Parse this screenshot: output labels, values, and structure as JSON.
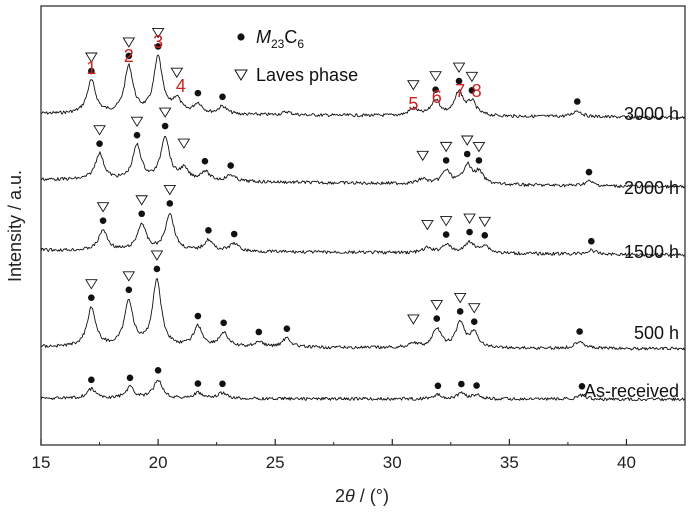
{
  "chart_data": {
    "type": "line",
    "title": "",
    "xlabel": "2θ / (°)",
    "ylabel": "Intensity / a.u.",
    "xlim": [
      15,
      42.5
    ],
    "xticks": [
      15,
      20,
      25,
      30,
      35,
      40
    ],
    "tick_labels": [
      "15",
      "20",
      "25",
      "30",
      "35",
      "40"
    ],
    "grid": false,
    "legend": {
      "placement": "top-center",
      "entries": [
        {
          "marker": "filled-circle",
          "label_main": "M",
          "label_sub1": "23",
          "label_mid": "C",
          "label_sub2": "6"
        },
        {
          "marker": "open-triangle-down",
          "label": "Laves phase"
        }
      ]
    },
    "peak_numbers": [
      {
        "text": "1",
        "x": 17.15
      },
      {
        "text": "2",
        "x": 18.75
      },
      {
        "text": "3",
        "x": 20.0
      },
      {
        "text": "4",
        "x": 20.8
      },
      {
        "text": "5",
        "x": 30.9
      },
      {
        "text": "6",
        "x": 31.9
      },
      {
        "text": "7",
        "x": 32.9
      },
      {
        "text": "8",
        "x": 33.6
      }
    ],
    "series": [
      {
        "name": "3000 h",
        "baseline": 0.08,
        "peaks": [
          {
            "x": 17.15,
            "h": 0.42
          },
          {
            "x": 18.75,
            "h": 0.6
          },
          {
            "x": 20.0,
            "h": 0.72
          },
          {
            "x": 20.8,
            "h": 0.18
          },
          {
            "x": 21.7,
            "h": 0.13
          },
          {
            "x": 22.75,
            "h": 0.1
          },
          {
            "x": 25.5,
            "h": 0.04
          },
          {
            "x": 30.9,
            "h": 0.09
          },
          {
            "x": 31.85,
            "h": 0.2
          },
          {
            "x": 32.85,
            "h": 0.3
          },
          {
            "x": 33.4,
            "h": 0.17
          },
          {
            "x": 37.9,
            "h": 0.08
          }
        ],
        "carbide_markers": [
          17.15,
          18.75,
          20.0,
          21.7,
          22.75,
          31.85,
          32.85,
          33.4,
          37.9
        ],
        "laves_markers": [
          17.15,
          18.75,
          20.0,
          20.8,
          30.9,
          31.85,
          32.85,
          33.4
        ]
      },
      {
        "name": "2000 h",
        "baseline": 0.16,
        "peaks": [
          {
            "x": 17.5,
            "h": 0.34
          },
          {
            "x": 19.1,
            "h": 0.44
          },
          {
            "x": 20.3,
            "h": 0.56
          },
          {
            "x": 21.1,
            "h": 0.14
          },
          {
            "x": 22.0,
            "h": 0.12
          },
          {
            "x": 23.1,
            "h": 0.08
          },
          {
            "x": 31.3,
            "h": 0.06
          },
          {
            "x": 32.3,
            "h": 0.17
          },
          {
            "x": 33.2,
            "h": 0.24
          },
          {
            "x": 33.7,
            "h": 0.15
          },
          {
            "x": 38.4,
            "h": 0.06
          }
        ],
        "carbide_markers": [
          17.5,
          19.1,
          20.3,
          22.0,
          23.1,
          32.3,
          33.2,
          33.7,
          38.4
        ],
        "laves_markers": [
          17.5,
          19.1,
          20.3,
          21.1,
          31.3,
          32.3,
          33.2,
          33.7
        ]
      },
      {
        "name": "1500 h",
        "baseline": 0.1,
        "peaks": [
          {
            "x": 17.65,
            "h": 0.26
          },
          {
            "x": 19.3,
            "h": 0.34
          },
          {
            "x": 20.5,
            "h": 0.48
          },
          {
            "x": 22.15,
            "h": 0.14
          },
          {
            "x": 23.25,
            "h": 0.1
          },
          {
            "x": 31.5,
            "h": 0.06
          },
          {
            "x": 32.3,
            "h": 0.11
          },
          {
            "x": 33.3,
            "h": 0.14
          },
          {
            "x": 33.95,
            "h": 0.1
          },
          {
            "x": 38.5,
            "h": 0.05
          }
        ],
        "carbide_markers": [
          17.65,
          19.3,
          20.5,
          22.15,
          23.25,
          32.3,
          33.3,
          33.95,
          38.5
        ],
        "laves_markers": [
          17.65,
          19.3,
          20.5,
          31.5,
          32.3,
          33.3,
          33.95
        ]
      },
      {
        "name": "500 h",
        "baseline": 0.04,
        "peaks": [
          {
            "x": 17.15,
            "h": 0.5
          },
          {
            "x": 18.75,
            "h": 0.58
          },
          {
            "x": 19.95,
            "h": 0.86
          },
          {
            "x": 21.7,
            "h": 0.26
          },
          {
            "x": 22.8,
            "h": 0.18
          },
          {
            "x": 24.3,
            "h": 0.07
          },
          {
            "x": 25.5,
            "h": 0.12
          },
          {
            "x": 30.9,
            "h": 0.06
          },
          {
            "x": 31.9,
            "h": 0.24
          },
          {
            "x": 32.9,
            "h": 0.32
          },
          {
            "x": 33.5,
            "h": 0.18
          },
          {
            "x": 38.0,
            "h": 0.1
          }
        ],
        "carbide_markers": [
          17.15,
          18.75,
          19.95,
          21.7,
          22.8,
          24.3,
          25.5,
          31.9,
          32.9,
          33.5,
          38.0
        ],
        "laves_markers": [
          17.15,
          18.75,
          19.95,
          30.9,
          31.9,
          32.9,
          33.5
        ]
      },
      {
        "name": "As-received",
        "baseline": 0.02,
        "peaks": [
          {
            "x": 17.15,
            "h": 0.12
          },
          {
            "x": 18.8,
            "h": 0.14
          },
          {
            "x": 20.0,
            "h": 0.24
          },
          {
            "x": 21.7,
            "h": 0.07
          },
          {
            "x": 22.75,
            "h": 0.07
          },
          {
            "x": 31.95,
            "h": 0.05
          },
          {
            "x": 32.95,
            "h": 0.07
          },
          {
            "x": 33.6,
            "h": 0.05
          },
          {
            "x": 38.1,
            "h": 0.05
          }
        ],
        "carbide_markers": [
          17.15,
          18.8,
          20.0,
          21.7,
          22.75,
          31.95,
          32.95,
          33.6,
          38.1
        ],
        "laves_markers": []
      }
    ]
  }
}
